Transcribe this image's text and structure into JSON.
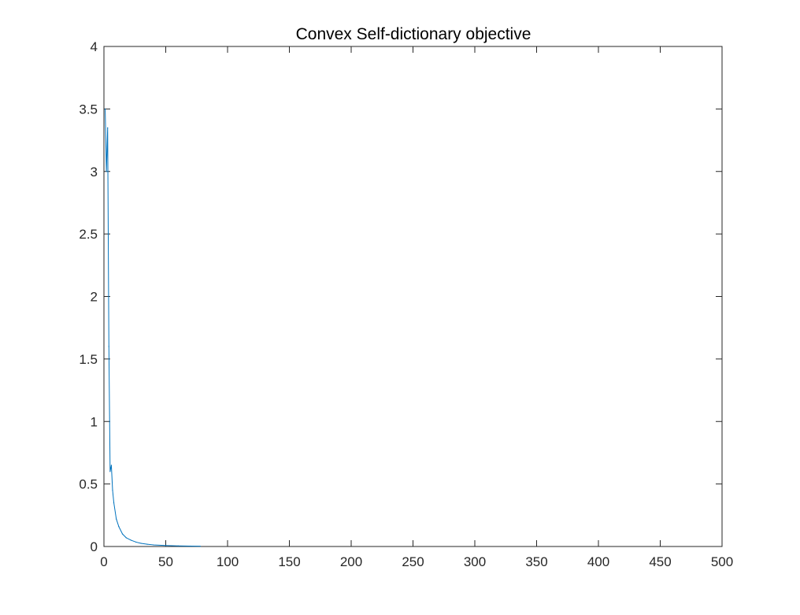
{
  "chart_data": {
    "type": "line",
    "title": "Convex Self-dictionary objective",
    "xlabel": "",
    "ylabel": "",
    "xlim": [
      0,
      500
    ],
    "ylim": [
      0,
      4
    ],
    "x_ticks": [
      "0",
      "50",
      "100",
      "150",
      "200",
      "250",
      "300",
      "350",
      "400",
      "450",
      "500"
    ],
    "y_ticks": [
      "0",
      "0.5",
      "1",
      "1.5",
      "2",
      "2.5",
      "3",
      "3.5",
      "4"
    ],
    "grid": false,
    "line_color": "#0072bd",
    "axis_color": "#262626",
    "series": [
      {
        "x": [
          1,
          2,
          3,
          4,
          5,
          6,
          7,
          8,
          10,
          12,
          15,
          18,
          22,
          26,
          30,
          35,
          40,
          50,
          60,
          70,
          78
        ],
        "values": [
          3.5,
          3.0,
          3.35,
          1.6,
          0.6,
          0.65,
          0.45,
          0.35,
          0.22,
          0.16,
          0.1,
          0.07,
          0.05,
          0.035,
          0.025,
          0.018,
          0.013,
          0.008,
          0.005,
          0.003,
          0.002
        ]
      }
    ]
  }
}
